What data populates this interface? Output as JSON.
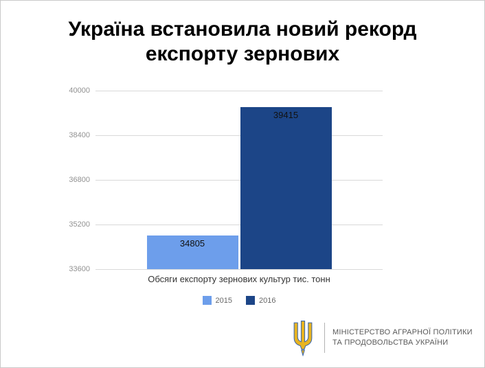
{
  "slide": {
    "title_line1": "Україна встановила новий рекорд",
    "title_line2": "експорту зернових"
  },
  "chart_data": {
    "type": "bar",
    "categories": [
      "2015",
      "2016"
    ],
    "series": [
      {
        "name": "2015",
        "value": 34805,
        "color": "#6d9eeb"
      },
      {
        "name": "2016",
        "value": 39415,
        "color": "#1c4587"
      }
    ],
    "xlabel": "Обсяги експорту зернових культур тис. тонн",
    "ylabel": "",
    "ylim": [
      33600,
      40000
    ],
    "yticks": [
      33600,
      35200,
      36800,
      38400,
      40000
    ],
    "ytick_step": 1600,
    "grid": true,
    "legend": [
      "2015",
      "2016"
    ],
    "legend_position": "bottom",
    "bar_value_labels": [
      34805,
      39415
    ]
  },
  "footer": {
    "ministry_line1": "МІНІСТЕРСТВО АГРАРНОЇ ПОЛІТИКИ",
    "ministry_line2": "ТА ПРОДОВОЛЬСТВА УКРАЇНИ"
  },
  "colors": {
    "bar_2015": "#6d9eeb",
    "bar_2016": "#1c4587",
    "grid": "#d9d9d9",
    "tick_label": "#919191",
    "axis_title": "#333333",
    "legend_label": "#666666",
    "ministry_text": "#595959",
    "trident_gold": "#e8b421",
    "trident_outline": "#3a66ad"
  }
}
